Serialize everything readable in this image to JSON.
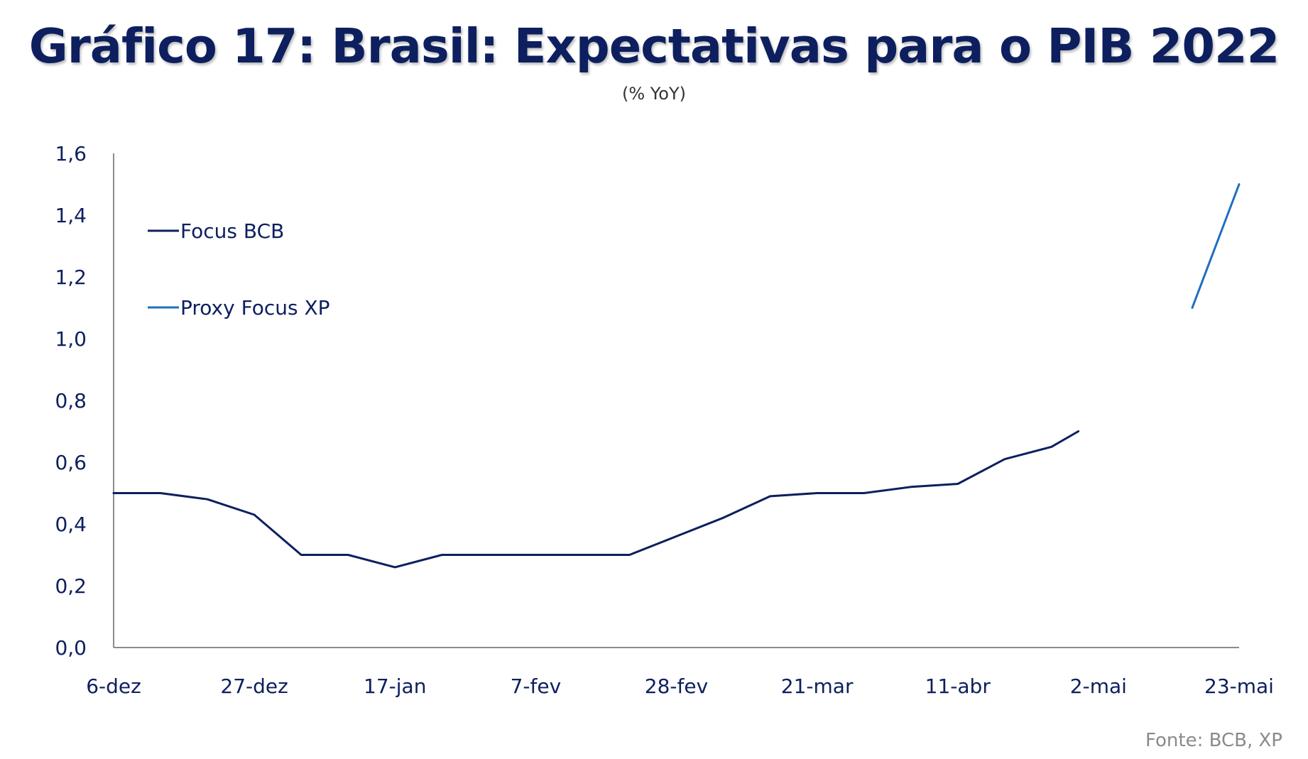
{
  "title": "Gráfico 17: Brasil: Expectativas para o PIB 2022",
  "subtitle": "(% YoY)",
  "source": "Fonte: BCB, XP",
  "chart_data": {
    "type": "line",
    "x_tick_labels": [
      "6-dez",
      "27-dez",
      "17-jan",
      "7-fev",
      "28-fev",
      "21-mar",
      "11-abr",
      "2-mai",
      "23-mai"
    ],
    "x_tick_dates": [
      "2021-12-06",
      "2021-12-27",
      "2022-01-17",
      "2022-02-07",
      "2022-02-28",
      "2022-03-21",
      "2022-04-11",
      "2022-05-02",
      "2022-05-23"
    ],
    "xlim": [
      "2021-12-06",
      "2022-05-23"
    ],
    "ylim": [
      0.0,
      1.6
    ],
    "y_ticks": [
      0.0,
      0.2,
      0.4,
      0.6,
      0.8,
      1.0,
      1.2,
      1.4,
      1.6
    ],
    "y_tick_labels": [
      "0,0",
      "0,2",
      "0,4",
      "0,6",
      "0,8",
      "1,0",
      "1,2",
      "1,4",
      "1,6"
    ],
    "legend_position": "top-left",
    "grid": false,
    "series": [
      {
        "name": "Focus BCB",
        "color": "#0d1f5e",
        "points": [
          {
            "x": "2021-12-06",
            "y": 0.5
          },
          {
            "x": "2021-12-13",
            "y": 0.5
          },
          {
            "x": "2021-12-20",
            "y": 0.48
          },
          {
            "x": "2021-12-27",
            "y": 0.43
          },
          {
            "x": "2022-01-03",
            "y": 0.3
          },
          {
            "x": "2022-01-10",
            "y": 0.3
          },
          {
            "x": "2022-01-17",
            "y": 0.26
          },
          {
            "x": "2022-01-24",
            "y": 0.3
          },
          {
            "x": "2022-01-31",
            "y": 0.3
          },
          {
            "x": "2022-02-07",
            "y": 0.3
          },
          {
            "x": "2022-02-14",
            "y": 0.3
          },
          {
            "x": "2022-02-21",
            "y": 0.3
          },
          {
            "x": "2022-02-28",
            "y": 0.36
          },
          {
            "x": "2022-03-07",
            "y": 0.42
          },
          {
            "x": "2022-03-14",
            "y": 0.49
          },
          {
            "x": "2022-03-21",
            "y": 0.5
          },
          {
            "x": "2022-03-28",
            "y": 0.5
          },
          {
            "x": "2022-04-04",
            "y": 0.52
          },
          {
            "x": "2022-04-11",
            "y": 0.53
          },
          {
            "x": "2022-04-18",
            "y": 0.61
          },
          {
            "x": "2022-04-25",
            "y": 0.65
          },
          {
            "x": "2022-04-29",
            "y": 0.7
          }
        ]
      },
      {
        "name": "Proxy Focus XP",
        "color": "#1f6fbf",
        "points": [
          {
            "x": "2022-05-16",
            "y": 1.1
          },
          {
            "x": "2022-05-23",
            "y": 1.5
          }
        ]
      }
    ]
  }
}
